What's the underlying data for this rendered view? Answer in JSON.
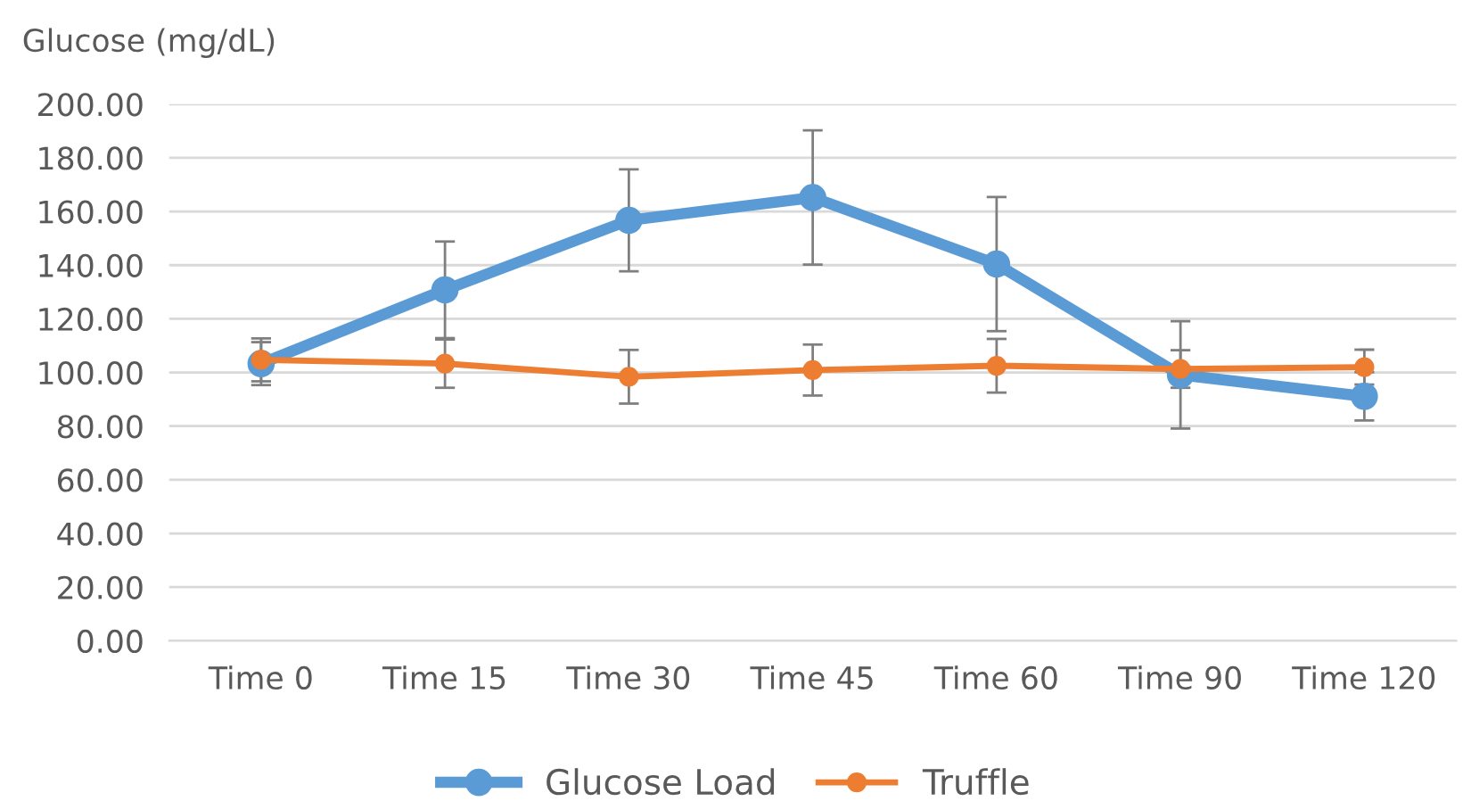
{
  "chart_data": {
    "type": "line",
    "ylabel": "Glucose (mg/dL)",
    "categories": [
      "Time 0",
      "Time 15",
      "Time 30",
      "Time 45",
      "Time 60",
      "Time 90",
      "Time 120"
    ],
    "series": [
      {
        "name": "Glucose Load",
        "color": "#5b9bd5",
        "values": [
          103.3,
          130.8,
          156.7,
          165.2,
          140.4,
          99.1,
          91.1
        ],
        "errors": [
          8,
          18,
          19,
          25,
          25,
          20,
          9
        ]
      },
      {
        "name": "Truffle",
        "color": "#ed7d31",
        "values": [
          104.7,
          103.3,
          98.4,
          100.9,
          102.5,
          101.3,
          102.0
        ],
        "errors": [
          8,
          9,
          10,
          9.5,
          10,
          7,
          6.5
        ]
      }
    ],
    "ylim": [
      0,
      200
    ],
    "yticks": [
      {
        "value": 0,
        "label": "0.00"
      },
      {
        "value": 20,
        "label": "20.00"
      },
      {
        "value": 40,
        "label": "40.00"
      },
      {
        "value": 60,
        "label": "60.00"
      },
      {
        "value": 80,
        "label": "80.00"
      },
      {
        "value": 100,
        "label": "100.00"
      },
      {
        "value": 120,
        "label": "120.00"
      },
      {
        "value": 140,
        "label": "140.00"
      },
      {
        "value": 160,
        "label": "160.00"
      },
      {
        "value": 180,
        "label": "180.00"
      },
      {
        "value": 200,
        "label": "200.00"
      }
    ],
    "grid": "y",
    "legend": "bottom",
    "marker": "circle",
    "line_style": "solid"
  }
}
